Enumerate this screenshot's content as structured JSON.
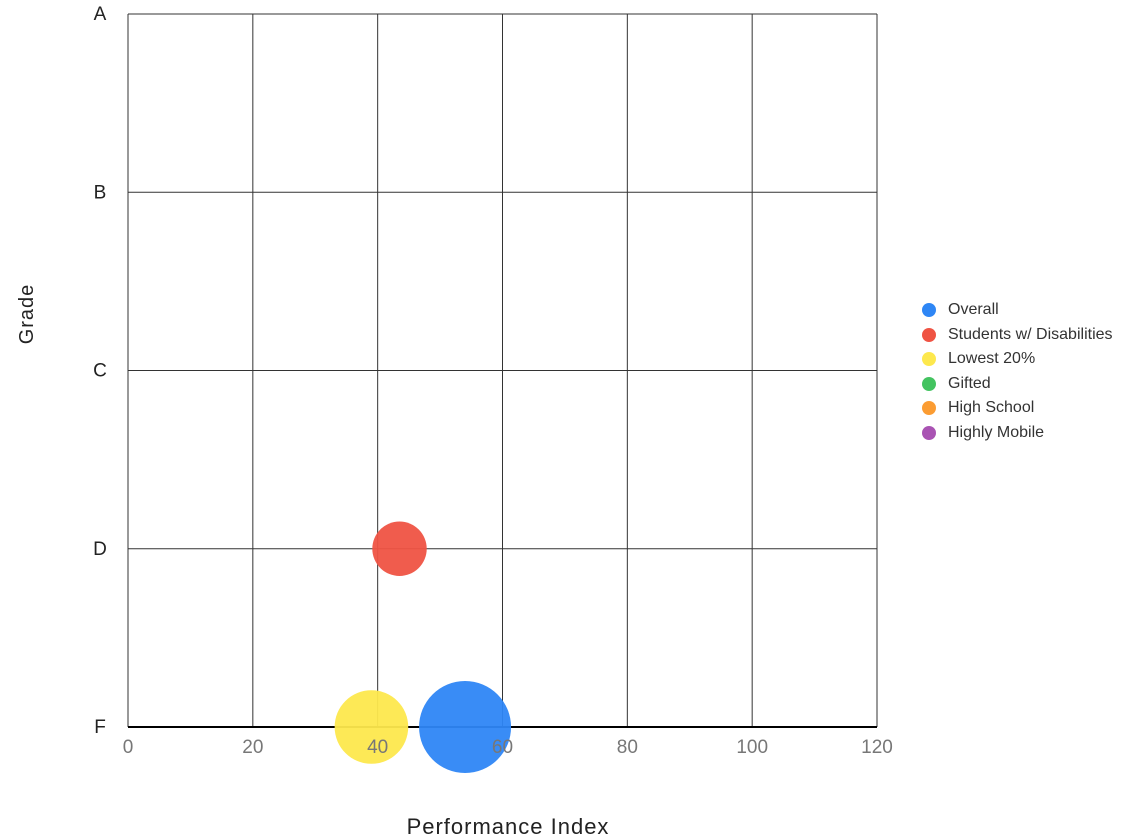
{
  "chart_data": {
    "type": "scatter",
    "title": "",
    "xlabel": "Performance Index",
    "ylabel": "Grade",
    "xlim": [
      0,
      120
    ],
    "x_ticks": [
      "0",
      "20",
      "40",
      "60",
      "80",
      "100",
      "120"
    ],
    "y_categories": [
      "F",
      "D",
      "C",
      "B",
      "A"
    ],
    "grid": true,
    "legend_position": "right",
    "bubble_sizes_relative": true,
    "series": [
      {
        "name": "Overall",
        "color": "#2e86f5",
        "points": [
          {
            "x": 54,
            "y": "F",
            "size": 1.0
          }
        ]
      },
      {
        "name": "Students w/ Disabilities",
        "color": "#ef5343",
        "points": [
          {
            "x": 43.5,
            "y": "D",
            "size": 0.35
          }
        ]
      },
      {
        "name": "Lowest 20%",
        "color": "#fde84d",
        "points": [
          {
            "x": 39,
            "y": "F",
            "size": 0.64
          }
        ]
      },
      {
        "name": "Gifted",
        "color": "#43c360",
        "points": []
      },
      {
        "name": "High School",
        "color": "#fb9c32",
        "points": []
      },
      {
        "name": "Highly Mobile",
        "color": "#a953b3",
        "points": []
      }
    ]
  }
}
